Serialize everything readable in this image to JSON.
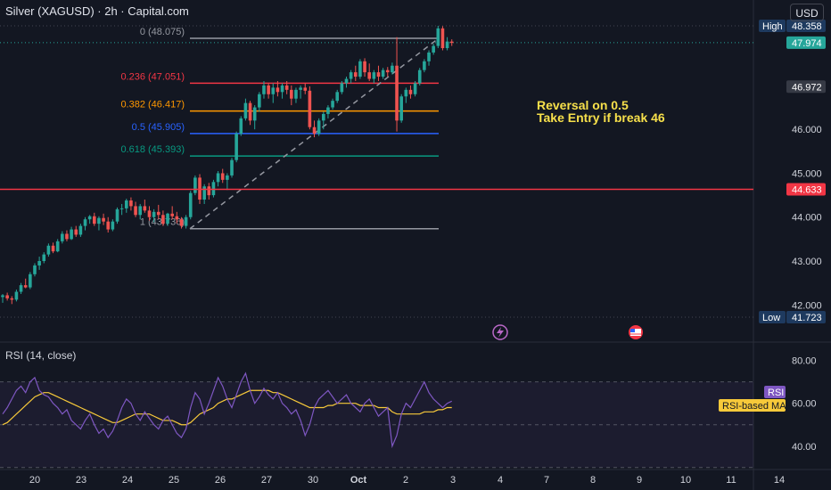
{
  "header": {
    "symbol": "Silver (XAGUSD) · 2h · Capital.com",
    "currency_button": "USD"
  },
  "annotation": {
    "line1": "Reversal on 0.5",
    "line2": "Take Entry if break 46"
  },
  "colors": {
    "background": "#131722",
    "up": "#26a69a",
    "down": "#ef5350",
    "support_line": "#f23645",
    "rsi": "#7e57c2",
    "rsi_ma": "#f7c93a",
    "annotation": "#f7e04b"
  },
  "events": [
    {
      "icon": "lightning-icon",
      "date": "Oct 3"
    },
    {
      "icon": "us-flag-icon",
      "date": "Oct 4"
    }
  ],
  "chart_data": [
    {
      "type": "candlestick",
      "title": "Silver (XAGUSD) · 2h · Capital.com",
      "x_tick_labels": [
        "20",
        "23",
        "24",
        "25",
        "26",
        "27",
        "30",
        "Oct",
        "2",
        "3",
        "4",
        "7",
        "8",
        "9",
        "10",
        "11",
        "14"
      ],
      "y_tick_labels": [
        "42.000",
        "43.000",
        "44.000",
        "45.000",
        "46.000"
      ],
      "ylim": [
        41.6,
        48.5
      ],
      "ylabel": "USD",
      "price_labels": [
        {
          "text": "48.358",
          "tag": "High",
          "value": 48.358
        },
        {
          "text": "47.974",
          "value": 47.974
        },
        {
          "text": "46.972",
          "value": 46.972
        },
        {
          "text": "44.633",
          "value": 44.633
        },
        {
          "text": "41.723",
          "tag": "Low",
          "value": 41.723
        }
      ],
      "fibonacci": {
        "levels": [
          {
            "label": "0 (48.075)",
            "value": 48.075,
            "color": "#9598a1"
          },
          {
            "label": "0.236 (47.051)",
            "value": 47.051,
            "color": "#f23645"
          },
          {
            "label": "0.382 (46.417)",
            "value": 46.417,
            "color": "#ff9800"
          },
          {
            "label": "0.5 (45.905)",
            "value": 45.905,
            "color": "#2962ff"
          },
          {
            "label": "0.618 (45.393)",
            "value": 45.393,
            "color": "#089981"
          },
          {
            "label": "1 (43.736)",
            "value": 43.736,
            "color": "#9598a1"
          }
        ]
      },
      "horizontal_line": {
        "value": 44.633
      },
      "series": [
        {
          "values": [
            [
              42.18,
              42.25,
              42.05,
              42.22
            ],
            [
              42.22,
              42.28,
              42.1,
              42.15
            ],
            [
              42.15,
              42.2,
              42.02,
              42.12
            ],
            [
              42.12,
              42.35,
              42.08,
              42.3
            ],
            [
              42.3,
              42.5,
              42.25,
              42.45
            ],
            [
              42.45,
              42.6,
              42.38,
              42.4
            ],
            [
              42.4,
              42.75,
              42.36,
              42.7
            ],
            [
              42.7,
              42.95,
              42.65,
              42.9
            ],
            [
              42.9,
              43.1,
              42.8,
              43.0
            ],
            [
              43.0,
              43.2,
              42.95,
              43.15
            ],
            [
              43.15,
              43.4,
              43.1,
              43.35
            ],
            [
              43.35,
              43.42,
              43.18,
              43.22
            ],
            [
              43.22,
              43.5,
              43.2,
              43.45
            ],
            [
              43.45,
              43.68,
              43.4,
              43.62
            ],
            [
              43.62,
              43.7,
              43.45,
              43.5
            ],
            [
              43.5,
              43.78,
              43.48,
              43.72
            ],
            [
              43.72,
              43.8,
              43.55,
              43.6
            ],
            [
              43.6,
              43.85,
              43.55,
              43.8
            ],
            [
              43.8,
              44.0,
              43.7,
              43.95
            ],
            [
              43.95,
              44.05,
              43.85,
              44.02
            ],
            [
              44.02,
              44.1,
              43.8,
              43.85
            ],
            [
              43.85,
              44.02,
              43.7,
              43.98
            ],
            [
              43.98,
              44.08,
              43.82,
              43.9
            ],
            [
              43.9,
              44.0,
              43.65,
              43.72
            ],
            [
              43.72,
              43.95,
              43.68,
              43.9
            ],
            [
              43.9,
              44.22,
              43.85,
              44.18
            ],
            [
              44.18,
              44.3,
              44.05,
              44.2
            ],
            [
              44.2,
              44.42,
              44.1,
              44.38
            ],
            [
              44.38,
              44.45,
              44.15,
              44.25
            ],
            [
              44.25,
              44.35,
              44.0,
              44.05
            ],
            [
              44.05,
              44.3,
              43.95,
              44.25
            ],
            [
              44.25,
              44.4,
              44.1,
              44.15
            ],
            [
              44.15,
              44.25,
              43.92,
              44.0
            ],
            [
              44.0,
              44.18,
              43.88,
              44.12
            ],
            [
              44.12,
              44.28,
              43.95,
              44.05
            ],
            [
              44.05,
              44.15,
              43.8,
              43.85
            ],
            [
              43.85,
              44.1,
              43.8,
              44.08
            ],
            [
              44.08,
              44.25,
              43.95,
              44.02
            ],
            [
              44.02,
              44.12,
              43.86,
              43.95
            ],
            [
              43.95,
              44.0,
              43.74,
              43.8
            ],
            [
              43.8,
              44.05,
              43.74,
              44.0
            ],
            [
              44.0,
              44.6,
              43.95,
              44.55
            ],
            [
              44.55,
              44.95,
              44.5,
              44.9
            ],
            [
              44.9,
              44.98,
              44.3,
              44.4
            ],
            [
              44.4,
              44.75,
              44.3,
              44.7
            ],
            [
              44.7,
              44.78,
              44.4,
              44.5
            ],
            [
              44.5,
              44.85,
              44.45,
              44.8
            ],
            [
              44.8,
              45.05,
              44.7,
              45.0
            ],
            [
              45.0,
              45.1,
              44.78,
              44.85
            ],
            [
              44.85,
              45.0,
              44.62,
              44.95
            ],
            [
              44.95,
              45.35,
              44.9,
              45.3
            ],
            [
              45.3,
              45.95,
              45.25,
              45.9
            ],
            [
              45.9,
              46.3,
              45.85,
              46.25
            ],
            [
              46.25,
              46.7,
              46.2,
              46.6
            ],
            [
              46.6,
              46.65,
              46.1,
              46.2
            ],
            [
              46.2,
              46.55,
              46.0,
              46.5
            ],
            [
              46.5,
              46.85,
              46.4,
              46.8
            ],
            [
              46.8,
              47.1,
              46.7,
              47.0
            ],
            [
              47.0,
              47.05,
              46.7,
              46.8
            ],
            [
              46.8,
              47.05,
              46.6,
              46.95
            ],
            [
              46.95,
              47.1,
              46.75,
              46.85
            ],
            [
              46.85,
              47.05,
              46.7,
              47.0
            ],
            [
              47.0,
              47.1,
              46.8,
              46.9
            ],
            [
              46.9,
              47.0,
              46.55,
              46.7
            ],
            [
              46.7,
              46.95,
              46.6,
              46.9
            ],
            [
              46.9,
              47.0,
              46.7,
              46.95
            ],
            [
              46.95,
              47.05,
              46.8,
              46.88
            ],
            [
              46.88,
              46.98,
              46.0,
              46.05
            ],
            [
              46.05,
              46.2,
              45.82,
              45.9
            ],
            [
              45.9,
              46.25,
              45.85,
              46.2
            ],
            [
              46.2,
              46.4,
              46.0,
              46.35
            ],
            [
              46.35,
              46.55,
              46.25,
              46.5
            ],
            [
              46.5,
              46.7,
              46.45,
              46.65
            ],
            [
              46.65,
              46.9,
              46.6,
              46.85
            ],
            [
              46.85,
              47.1,
              46.8,
              47.05
            ],
            [
              47.05,
              47.2,
              46.95,
              47.15
            ],
            [
              47.15,
              47.35,
              47.05,
              47.3
            ],
            [
              47.3,
              47.45,
              47.1,
              47.2
            ],
            [
              47.2,
              47.6,
              47.15,
              47.55
            ],
            [
              47.55,
              47.62,
              47.2,
              47.3
            ],
            [
              47.3,
              47.5,
              47.1,
              47.15
            ],
            [
              47.15,
              47.35,
              47.05,
              47.3
            ],
            [
              47.3,
              47.45,
              47.1,
              47.2
            ],
            [
              47.2,
              47.4,
              47.15,
              47.35
            ],
            [
              47.35,
              47.42,
              47.2,
              47.3
            ],
            [
              47.3,
              47.52,
              47.25,
              47.45
            ],
            [
              47.45,
              48.1,
              45.95,
              46.2
            ],
            [
              46.2,
              46.8,
              46.15,
              46.75
            ],
            [
              46.75,
              46.95,
              46.6,
              46.9
            ],
            [
              46.9,
              47.0,
              46.7,
              46.8
            ],
            [
              46.8,
              47.1,
              46.75,
              47.05
            ],
            [
              47.05,
              47.4,
              47.0,
              47.35
            ],
            [
              47.35,
              47.6,
              47.3,
              47.55
            ],
            [
              47.55,
              47.8,
              47.45,
              47.75
            ],
            [
              47.75,
              47.95,
              47.7,
              47.9
            ],
            [
              47.9,
              48.358,
              47.85,
              48.3
            ],
            [
              48.3,
              48.35,
              47.8,
              47.85
            ],
            [
              47.85,
              48.1,
              47.8,
              48.0
            ],
            [
              48.0,
              48.05,
              47.9,
              47.97
            ]
          ]
        }
      ]
    },
    {
      "type": "line",
      "title": "RSI (14, close)",
      "ylim": [
        32,
        84
      ],
      "y_tick_labels": [
        "80.00",
        "60.00",
        "40.00"
      ],
      "bands": [
        70,
        50,
        30
      ],
      "series": [
        {
          "name": "RSI",
          "values": [
            55,
            58,
            62,
            66,
            68,
            65,
            70,
            72,
            66,
            64,
            63,
            60,
            58,
            55,
            57,
            52,
            50,
            48,
            52,
            55,
            50,
            46,
            48,
            44,
            47,
            52,
            58,
            62,
            60,
            55,
            52,
            56,
            53,
            50,
            48,
            52,
            54,
            50,
            46,
            44,
            48,
            58,
            65,
            62,
            55,
            60,
            66,
            72,
            68,
            62,
            58,
            64,
            70,
            74,
            66,
            60,
            63,
            67,
            64,
            62,
            65,
            60,
            58,
            55,
            57,
            52,
            45,
            50,
            58,
            62,
            64,
            66,
            63,
            60,
            62,
            64,
            60,
            58,
            56,
            60,
            62,
            58,
            54,
            56,
            58,
            40,
            45,
            55,
            60,
            58,
            62,
            66,
            70,
            65,
            62,
            60,
            58,
            60,
            61
          ]
        },
        {
          "name": "RSI-based MA",
          "values": [
            50,
            51,
            53,
            55,
            57,
            59,
            61,
            63,
            64,
            65,
            65,
            64,
            63,
            62,
            61,
            60,
            59,
            58,
            57,
            56,
            55,
            54,
            53,
            52,
            51,
            51,
            52,
            53,
            54,
            55,
            55,
            55,
            55,
            54,
            53,
            52,
            52,
            52,
            51,
            50,
            50,
            51,
            53,
            55,
            56,
            57,
            58,
            60,
            61,
            62,
            62,
            63,
            64,
            65,
            66,
            66,
            66,
            66,
            66,
            65,
            65,
            64,
            63,
            62,
            61,
            60,
            59,
            58,
            58,
            58,
            58,
            59,
            59,
            60,
            60,
            60,
            60,
            60,
            59,
            59,
            59,
            59,
            58,
            58,
            58,
            56,
            55,
            55,
            55,
            55,
            55,
            55,
            56,
            56,
            56,
            57,
            57,
            58,
            58
          ]
        }
      ],
      "legend": [
        "RSI",
        "RSI-based MA"
      ]
    }
  ]
}
